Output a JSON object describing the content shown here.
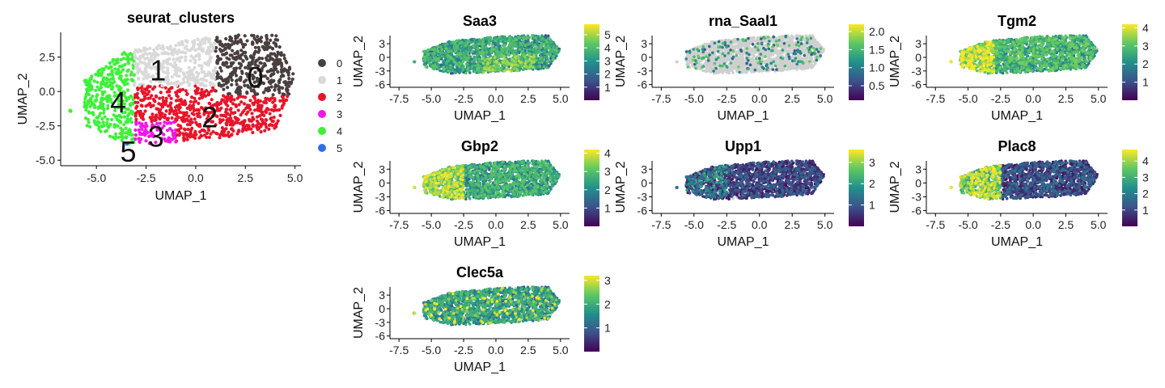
{
  "chart_data": [
    {
      "type": "scatter",
      "title": "seurat_clusters",
      "xlabel": "UMAP_1",
      "ylabel": "UMAP_2",
      "x_ticks": [
        "-5.0",
        "-2.5",
        "0.0",
        "2.5",
        "5.0"
      ],
      "y_ticks": [
        "2.5",
        "0.0",
        "-2.5",
        "-5.0"
      ],
      "xlim": [
        -6.8,
        5.3
      ],
      "ylim": [
        -5.4,
        4.3
      ],
      "legend_position": "right",
      "legend": [
        {
          "label": "0",
          "color": "#4a3f3f"
        },
        {
          "label": "1",
          "color": "#d9d9d9"
        },
        {
          "label": "2",
          "color": "#e8152a"
        },
        {
          "label": "3",
          "color": "#f018e8"
        },
        {
          "label": "4",
          "color": "#3ef03a"
        },
        {
          "label": "5",
          "color": "#2f6ee8"
        }
      ],
      "cluster_labels": [
        {
          "label": "0",
          "x": 3.0,
          "y": 1.0
        },
        {
          "label": "1",
          "x": -1.9,
          "y": 1.5
        },
        {
          "label": "2",
          "x": 0.7,
          "y": -1.9
        },
        {
          "label": "3",
          "x": -2.0,
          "y": -3.3
        },
        {
          "label": "4",
          "x": -3.9,
          "y": -0.8
        },
        {
          "label": "5",
          "x": -3.4,
          "y": -4.4
        }
      ]
    },
    {
      "type": "scatter",
      "title": "Saa3",
      "xlabel": "UMAP_1",
      "ylabel": "UMAP_2",
      "colorscale": "viridis",
      "colorbar_ticks": [
        "5",
        "4",
        "3",
        "2",
        "1"
      ],
      "colorbar_range": [
        0,
        5.8
      ],
      "expression_fraction": 0.95
    },
    {
      "type": "scatter",
      "title": "rna_Saal1",
      "xlabel": "UMAP_1",
      "ylabel": "UMAP_2",
      "colorscale": "viridis",
      "colorbar_ticks": [
        "2.0",
        "1.5",
        "1.0",
        "0.5"
      ],
      "colorbar_range": [
        0.1,
        2.2
      ],
      "expression_fraction": 0.1
    },
    {
      "type": "scatter",
      "title": "Tgm2",
      "xlabel": "UMAP_1",
      "ylabel": "UMAP_2",
      "colorscale": "viridis",
      "colorbar_ticks": [
        "4",
        "3",
        "2",
        "1"
      ],
      "colorbar_range": [
        0,
        4.2
      ],
      "expression_fraction": 0.95
    },
    {
      "type": "scatter",
      "title": "Gbp2",
      "xlabel": "UMAP_1",
      "ylabel": "UMAP_2",
      "colorscale": "viridis",
      "colorbar_ticks": [
        "4",
        "3",
        "2",
        "1"
      ],
      "colorbar_range": [
        0,
        4.2
      ],
      "expression_fraction": 0.95
    },
    {
      "type": "scatter",
      "title": "Upp1",
      "xlabel": "UMAP_1",
      "ylabel": "UMAP_2",
      "colorscale": "viridis",
      "colorbar_ticks": [
        "3",
        "2",
        "1"
      ],
      "colorbar_range": [
        0,
        3.6
      ],
      "expression_fraction": 0.9
    },
    {
      "type": "scatter",
      "title": "Plac8",
      "xlabel": "UMAP_1",
      "ylabel": "UMAP_2",
      "colorscale": "viridis",
      "colorbar_ticks": [
        "4",
        "3",
        "2",
        "1"
      ],
      "colorbar_range": [
        0,
        4.7
      ],
      "expression_fraction": 0.95
    },
    {
      "type": "scatter",
      "title": "Clec5a",
      "xlabel": "UMAP_1",
      "ylabel": "UMAP_2",
      "colorscale": "viridis",
      "colorbar_ticks": [
        "3",
        "2",
        "1"
      ],
      "colorbar_range": [
        0,
        3.2
      ],
      "expression_fraction": 0.9
    }
  ],
  "feature_axes": {
    "x_ticks": [
      "-7.5",
      "-5.0",
      "-2.5",
      "0.0",
      "2.5",
      "5.0"
    ],
    "y_ticks": [
      "3",
      "0",
      "-3",
      "-6"
    ],
    "xlim": [
      -8.2,
      5.7
    ],
    "ylim": [
      -6.6,
      4.8
    ]
  },
  "colors": {
    "not_expressed": "#cfcfcf",
    "viridis": [
      "#440154",
      "#3b528b",
      "#21908c",
      "#5dc863",
      "#fde725"
    ]
  }
}
